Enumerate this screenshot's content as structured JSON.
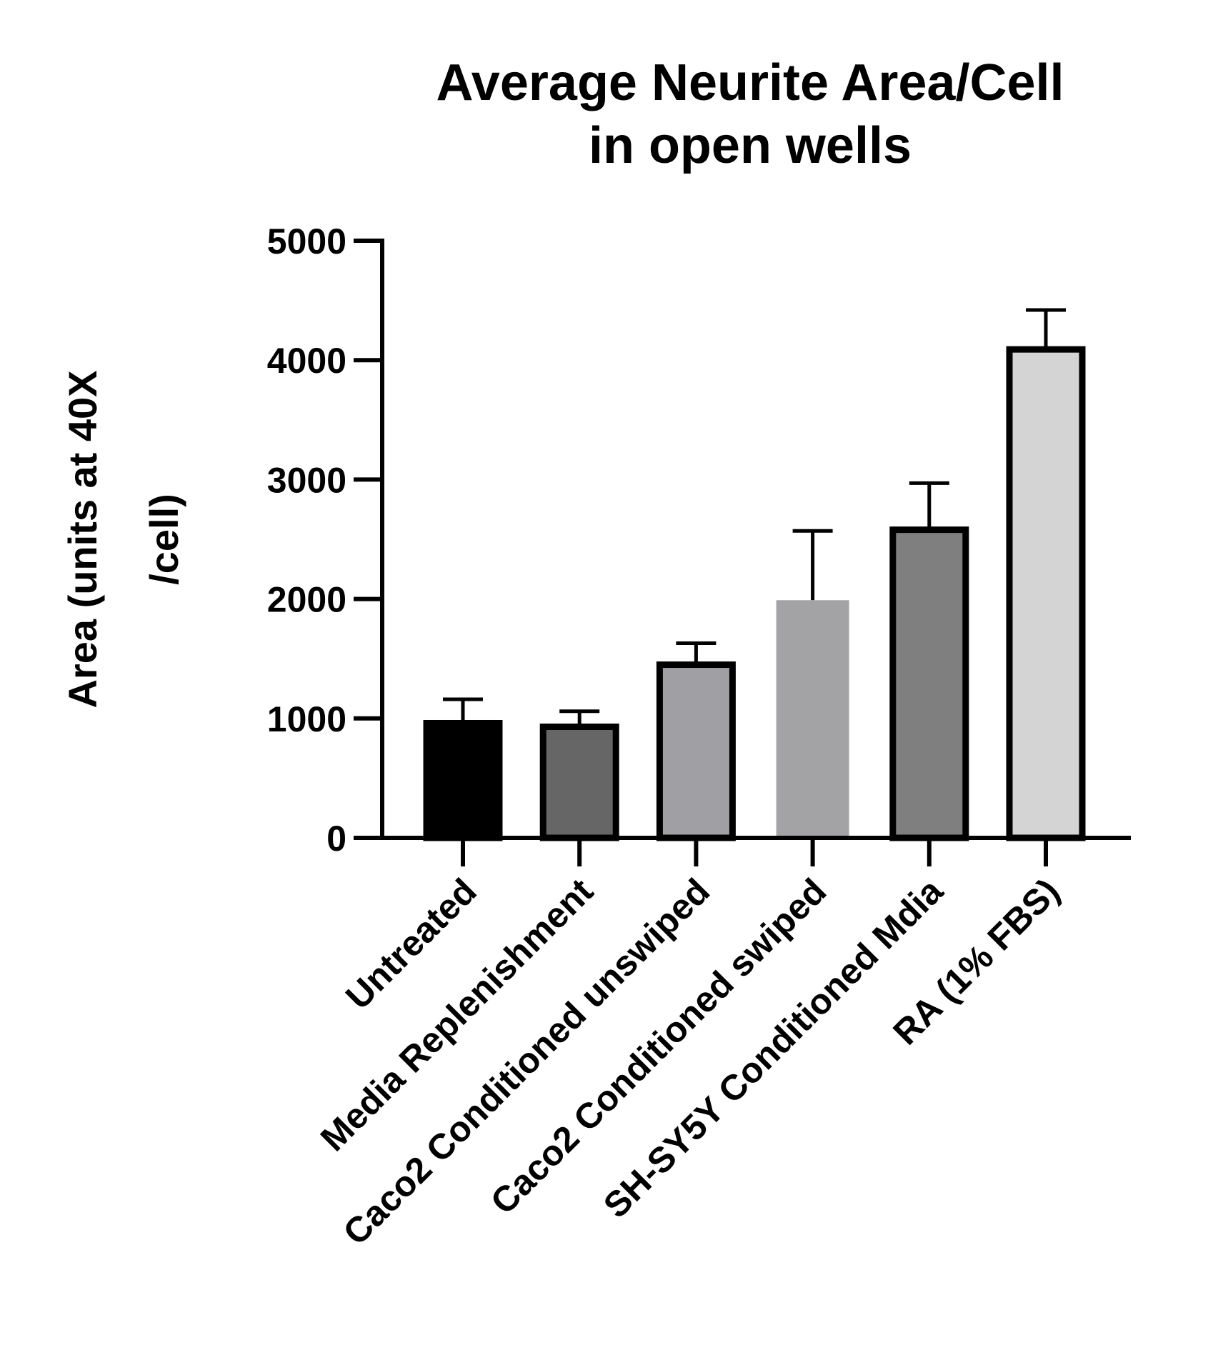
{
  "chart_data": {
    "type": "bar",
    "title_lines": [
      "Average Neurite Area/Cell",
      "in open wells"
    ],
    "ylabel_lines": [
      "Area (units at 40X",
      "/cell)"
    ],
    "xlabel": "",
    "ylim": [
      0,
      5000
    ],
    "yticks": [
      0,
      1000,
      2000,
      3000,
      4000,
      5000
    ],
    "ytick_labels": [
      "0",
      "1000",
      "2000",
      "3000",
      "4000",
      "5000"
    ],
    "categories": [
      "Untreated",
      "Media Replenishment",
      "Caco2 Conditioned unswiped",
      "Caco2 Conditioned swiped",
      "SH-SY5Y Conditioned Mdia",
      "RA (1% FBS)"
    ],
    "values": [
      960,
      930,
      1450,
      1990,
      2580,
      4090
    ],
    "errors": [
      200,
      130,
      180,
      580,
      390,
      330
    ],
    "bar_colors": [
      "#000000",
      "#666666",
      "#a0a0a4",
      "#a3a3a6",
      "#7f7f7f",
      "#d4d4d4"
    ],
    "grid": false,
    "legend": "none"
  }
}
